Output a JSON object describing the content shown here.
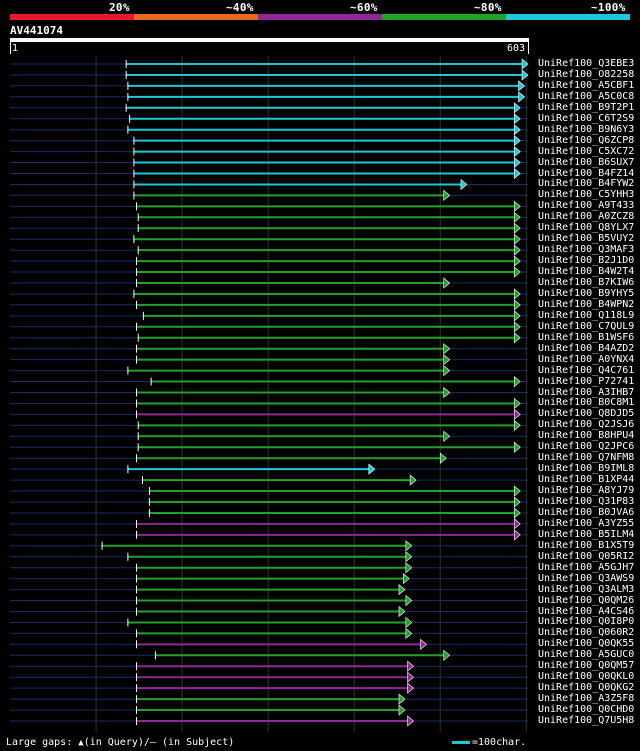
{
  "query": {
    "id": "AV441074",
    "start": "1",
    "end": "603"
  },
  "legend": [
    {
      "label": "20%",
      "color": "#e8192c"
    },
    {
      "label": "~40%",
      "color": "#e86a1e"
    },
    {
      "label": "~60%",
      "color": "#8e2a96"
    },
    {
      "label": "~80%",
      "color": "#22a22a"
    },
    {
      "label": "~100%",
      "color": "#1ec8d8"
    }
  ],
  "colors": {
    "cyan": "#1ec8d8",
    "green": "#22a22a",
    "purple": "#8e2a96",
    "line": "#1a2a6a",
    "grid": "#2a3a2a"
  },
  "footer": {
    "text": "Large gaps:",
    "query_note": "(in Query)/",
    "subject_note": "(in Subject)",
    "scale_text": "=100char."
  },
  "chart_data": {
    "type": "alignment",
    "query_length": 603,
    "hits": [
      {
        "name": "UniRef100_Q3EBE3",
        "start": 136,
        "end": 603,
        "identity": "cyan"
      },
      {
        "name": "UniRef100_O82258",
        "start": 136,
        "end": 603,
        "identity": "cyan"
      },
      {
        "name": "UniRef100_A5CBF1",
        "start": 138,
        "end": 599,
        "identity": "cyan"
      },
      {
        "name": "UniRef100_A5C0C8",
        "start": 138,
        "end": 599,
        "identity": "cyan"
      },
      {
        "name": "UniRef100_B9T2P1",
        "start": 136,
        "end": 594,
        "identity": "cyan"
      },
      {
        "name": "UniRef100_C6T2S9",
        "start": 140,
        "end": 594,
        "identity": "cyan"
      },
      {
        "name": "UniRef100_B9N6Y3",
        "start": 138,
        "end": 594,
        "identity": "cyan"
      },
      {
        "name": "UniRef100_Q6ZCP8",
        "start": 145,
        "end": 594,
        "identity": "cyan"
      },
      {
        "name": "UniRef100_C5XC72",
        "start": 145,
        "end": 594,
        "identity": "cyan"
      },
      {
        "name": "UniRef100_B6SUX7",
        "start": 145,
        "end": 594,
        "identity": "cyan"
      },
      {
        "name": "UniRef100_B4FZ14",
        "start": 145,
        "end": 594,
        "identity": "cyan"
      },
      {
        "name": "UniRef100_B4FYW2",
        "start": 145,
        "end": 532,
        "identity": "cyan"
      },
      {
        "name": "UniRef100_C5YHH3",
        "start": 145,
        "end": 512,
        "identity": "green"
      },
      {
        "name": "UniRef100_A9T433",
        "start": 148,
        "end": 594,
        "identity": "green"
      },
      {
        "name": "UniRef100_A0ZCZ8",
        "start": 150,
        "end": 594,
        "identity": "green"
      },
      {
        "name": "UniRef100_Q8YLX7",
        "start": 150,
        "end": 594,
        "identity": "green"
      },
      {
        "name": "UniRef100_B5VUY2",
        "start": 145,
        "end": 594,
        "identity": "green"
      },
      {
        "name": "UniRef100_Q3MAF3",
        "start": 150,
        "end": 594,
        "identity": "green"
      },
      {
        "name": "UniRef100_B2J1D0",
        "start": 148,
        "end": 594,
        "identity": "green"
      },
      {
        "name": "UniRef100_B4W2T4",
        "start": 148,
        "end": 594,
        "identity": "green"
      },
      {
        "name": "UniRef100_B7KIW6",
        "start": 148,
        "end": 512,
        "identity": "green"
      },
      {
        "name": "UniRef100_B9YHY5",
        "start": 145,
        "end": 594,
        "identity": "green"
      },
      {
        "name": "UniRef100_B4WPN2",
        "start": 148,
        "end": 594,
        "identity": "green"
      },
      {
        "name": "UniRef100_Q118L9",
        "start": 156,
        "end": 594,
        "identity": "green"
      },
      {
        "name": "UniRef100_C7QUL9",
        "start": 148,
        "end": 594,
        "identity": "green"
      },
      {
        "name": "UniRef100_B1WSF6",
        "start": 150,
        "end": 594,
        "identity": "green"
      },
      {
        "name": "UniRef100_B4AZD2",
        "start": 148,
        "end": 512,
        "identity": "green"
      },
      {
        "name": "UniRef100_A0YNX4",
        "start": 148,
        "end": 512,
        "identity": "green"
      },
      {
        "name": "UniRef100_Q4C761",
        "start": 138,
        "end": 512,
        "identity": "green"
      },
      {
        "name": "UniRef100_P72741",
        "start": 165,
        "end": 594,
        "identity": "green"
      },
      {
        "name": "UniRef100_A3IHB7",
        "start": 148,
        "end": 512,
        "identity": "green"
      },
      {
        "name": "UniRef100_B0C8M1",
        "start": 148,
        "end": 594,
        "identity": "green"
      },
      {
        "name": "UniRef100_Q8DJD5",
        "start": 148,
        "end": 594,
        "identity": "purple"
      },
      {
        "name": "UniRef100_Q2JSJ6",
        "start": 150,
        "end": 594,
        "identity": "green"
      },
      {
        "name": "UniRef100_B8HPU4",
        "start": 150,
        "end": 512,
        "identity": "green"
      },
      {
        "name": "UniRef100_Q2JPC6",
        "start": 150,
        "end": 594,
        "identity": "green"
      },
      {
        "name": "UniRef100_Q7NFM8",
        "start": 148,
        "end": 508,
        "identity": "green"
      },
      {
        "name": "UniRef100_B9IML8",
        "start": 138,
        "end": 425,
        "identity": "cyan"
      },
      {
        "name": "UniRef100_B1XP44",
        "start": 155,
        "end": 473,
        "identity": "green"
      },
      {
        "name": "UniRef100_A8YJ79",
        "start": 163,
        "end": 594,
        "identity": "green"
      },
      {
        "name": "UniRef100_Q31P83",
        "start": 163,
        "end": 594,
        "identity": "green"
      },
      {
        "name": "UniRef100_B0JVA6",
        "start": 163,
        "end": 594,
        "identity": "green"
      },
      {
        "name": "UniRef100_A3YZ55",
        "start": 148,
        "end": 594,
        "identity": "purple"
      },
      {
        "name": "UniRef100_B5ILM4",
        "start": 148,
        "end": 594,
        "identity": "purple"
      },
      {
        "name": "UniRef100_B1X5T9",
        "start": 108,
        "end": 468,
        "identity": "green"
      },
      {
        "name": "UniRef100_Q05RI2",
        "start": 138,
        "end": 468,
        "identity": "green"
      },
      {
        "name": "UniRef100_A5GJH7",
        "start": 148,
        "end": 468,
        "identity": "green"
      },
      {
        "name": "UniRef100_Q3AWS9",
        "start": 148,
        "end": 465,
        "identity": "green"
      },
      {
        "name": "UniRef100_Q3ALM3",
        "start": 148,
        "end": 460,
        "identity": "green"
      },
      {
        "name": "UniRef100_Q0QM26",
        "start": 148,
        "end": 468,
        "identity": "green"
      },
      {
        "name": "UniRef100_A4CS46",
        "start": 148,
        "end": 460,
        "identity": "green"
      },
      {
        "name": "UniRef100_Q0I8P0",
        "start": 138,
        "end": 468,
        "identity": "green"
      },
      {
        "name": "UniRef100_Q060R2",
        "start": 148,
        "end": 468,
        "identity": "green"
      },
      {
        "name": "UniRef100_Q0QK55",
        "start": 148,
        "end": 485,
        "identity": "purple"
      },
      {
        "name": "UniRef100_A5GUC0",
        "start": 170,
        "end": 512,
        "identity": "green"
      },
      {
        "name": "UniRef100_Q0QM57",
        "start": 148,
        "end": 470,
        "identity": "purple"
      },
      {
        "name": "UniRef100_Q0QKL0",
        "start": 148,
        "end": 470,
        "identity": "purple"
      },
      {
        "name": "UniRef100_Q0QKG2",
        "start": 148,
        "end": 470,
        "identity": "purple"
      },
      {
        "name": "UniRef100_A3Z5F8",
        "start": 148,
        "end": 460,
        "identity": "green"
      },
      {
        "name": "UniRef100_Q0CHD0",
        "start": 148,
        "end": 460,
        "identity": "green"
      },
      {
        "name": "UniRef100_Q7U5H8",
        "start": 148,
        "end": 470,
        "identity": "purple"
      }
    ]
  }
}
